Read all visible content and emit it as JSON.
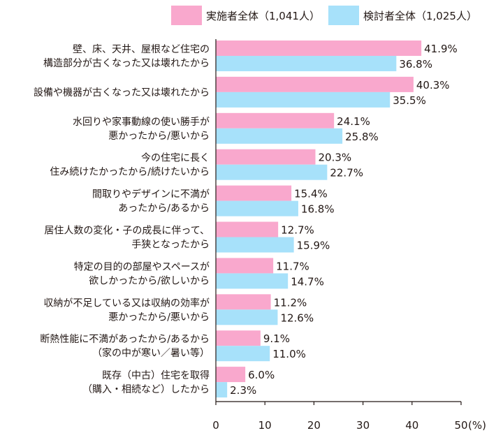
{
  "chart_data": {
    "type": "bar",
    "orientation": "horizontal",
    "categories": [
      [
        "壁、床、天井、屋根など住宅の",
        "構造部分が古くなった又は壊れたから"
      ],
      [
        "設備や機器が古くなった又は壊れたから"
      ],
      [
        "水回りや家事動線の使い勝手が",
        "悪かったから/悪いから"
      ],
      [
        "今の住宅に長く",
        "住み続けたかったから/続けたいから"
      ],
      [
        "間取りやデザインに不満が",
        "あったから/あるから"
      ],
      [
        "居住人数の変化・子の成長に伴って、",
        "手狭となったから"
      ],
      [
        "特定の目的の部屋やスペースが",
        "欲しかったから/欲しいから"
      ],
      [
        "収納が不足している又は収納の効率が",
        "悪かったから/悪いから"
      ],
      [
        "断熱性能に不満があったから/あるから",
        "（家の中が寒い／暑い等）"
      ],
      [
        "既存（中古）住宅を取得",
        "（購入・相続など）したから"
      ]
    ],
    "series": [
      {
        "name": "実施者全体（1,041人）",
        "color": "#f9a8cd",
        "values": [
          41.9,
          40.3,
          24.1,
          20.3,
          15.4,
          12.7,
          11.7,
          11.2,
          9.1,
          6.0
        ],
        "labels": [
          "41.9%",
          "40.3%",
          "24.1%",
          "20.3%",
          "15.4%",
          "12.7%",
          "11.7%",
          "11.2%",
          "9.1%",
          "6.0%"
        ]
      },
      {
        "name": "検討者全体（1,025人）",
        "color": "#a7e1fa",
        "values": [
          36.8,
          35.5,
          25.8,
          22.7,
          16.8,
          15.9,
          14.7,
          12.6,
          11.0,
          2.3
        ],
        "labels": [
          "36.8%",
          "35.5%",
          "25.8%",
          "22.7%",
          "16.8%",
          "15.9%",
          "14.7%",
          "12.6%",
          "11.0%",
          "2.3%"
        ]
      }
    ],
    "xlim": [
      0,
      50
    ],
    "xticks": [
      0,
      10,
      20,
      30,
      40,
      50
    ],
    "xtick_labels": [
      "0",
      "10",
      "20",
      "30",
      "40",
      "50"
    ],
    "unit_label": "(%)",
    "grid": false,
    "legend_position": "top-right"
  }
}
